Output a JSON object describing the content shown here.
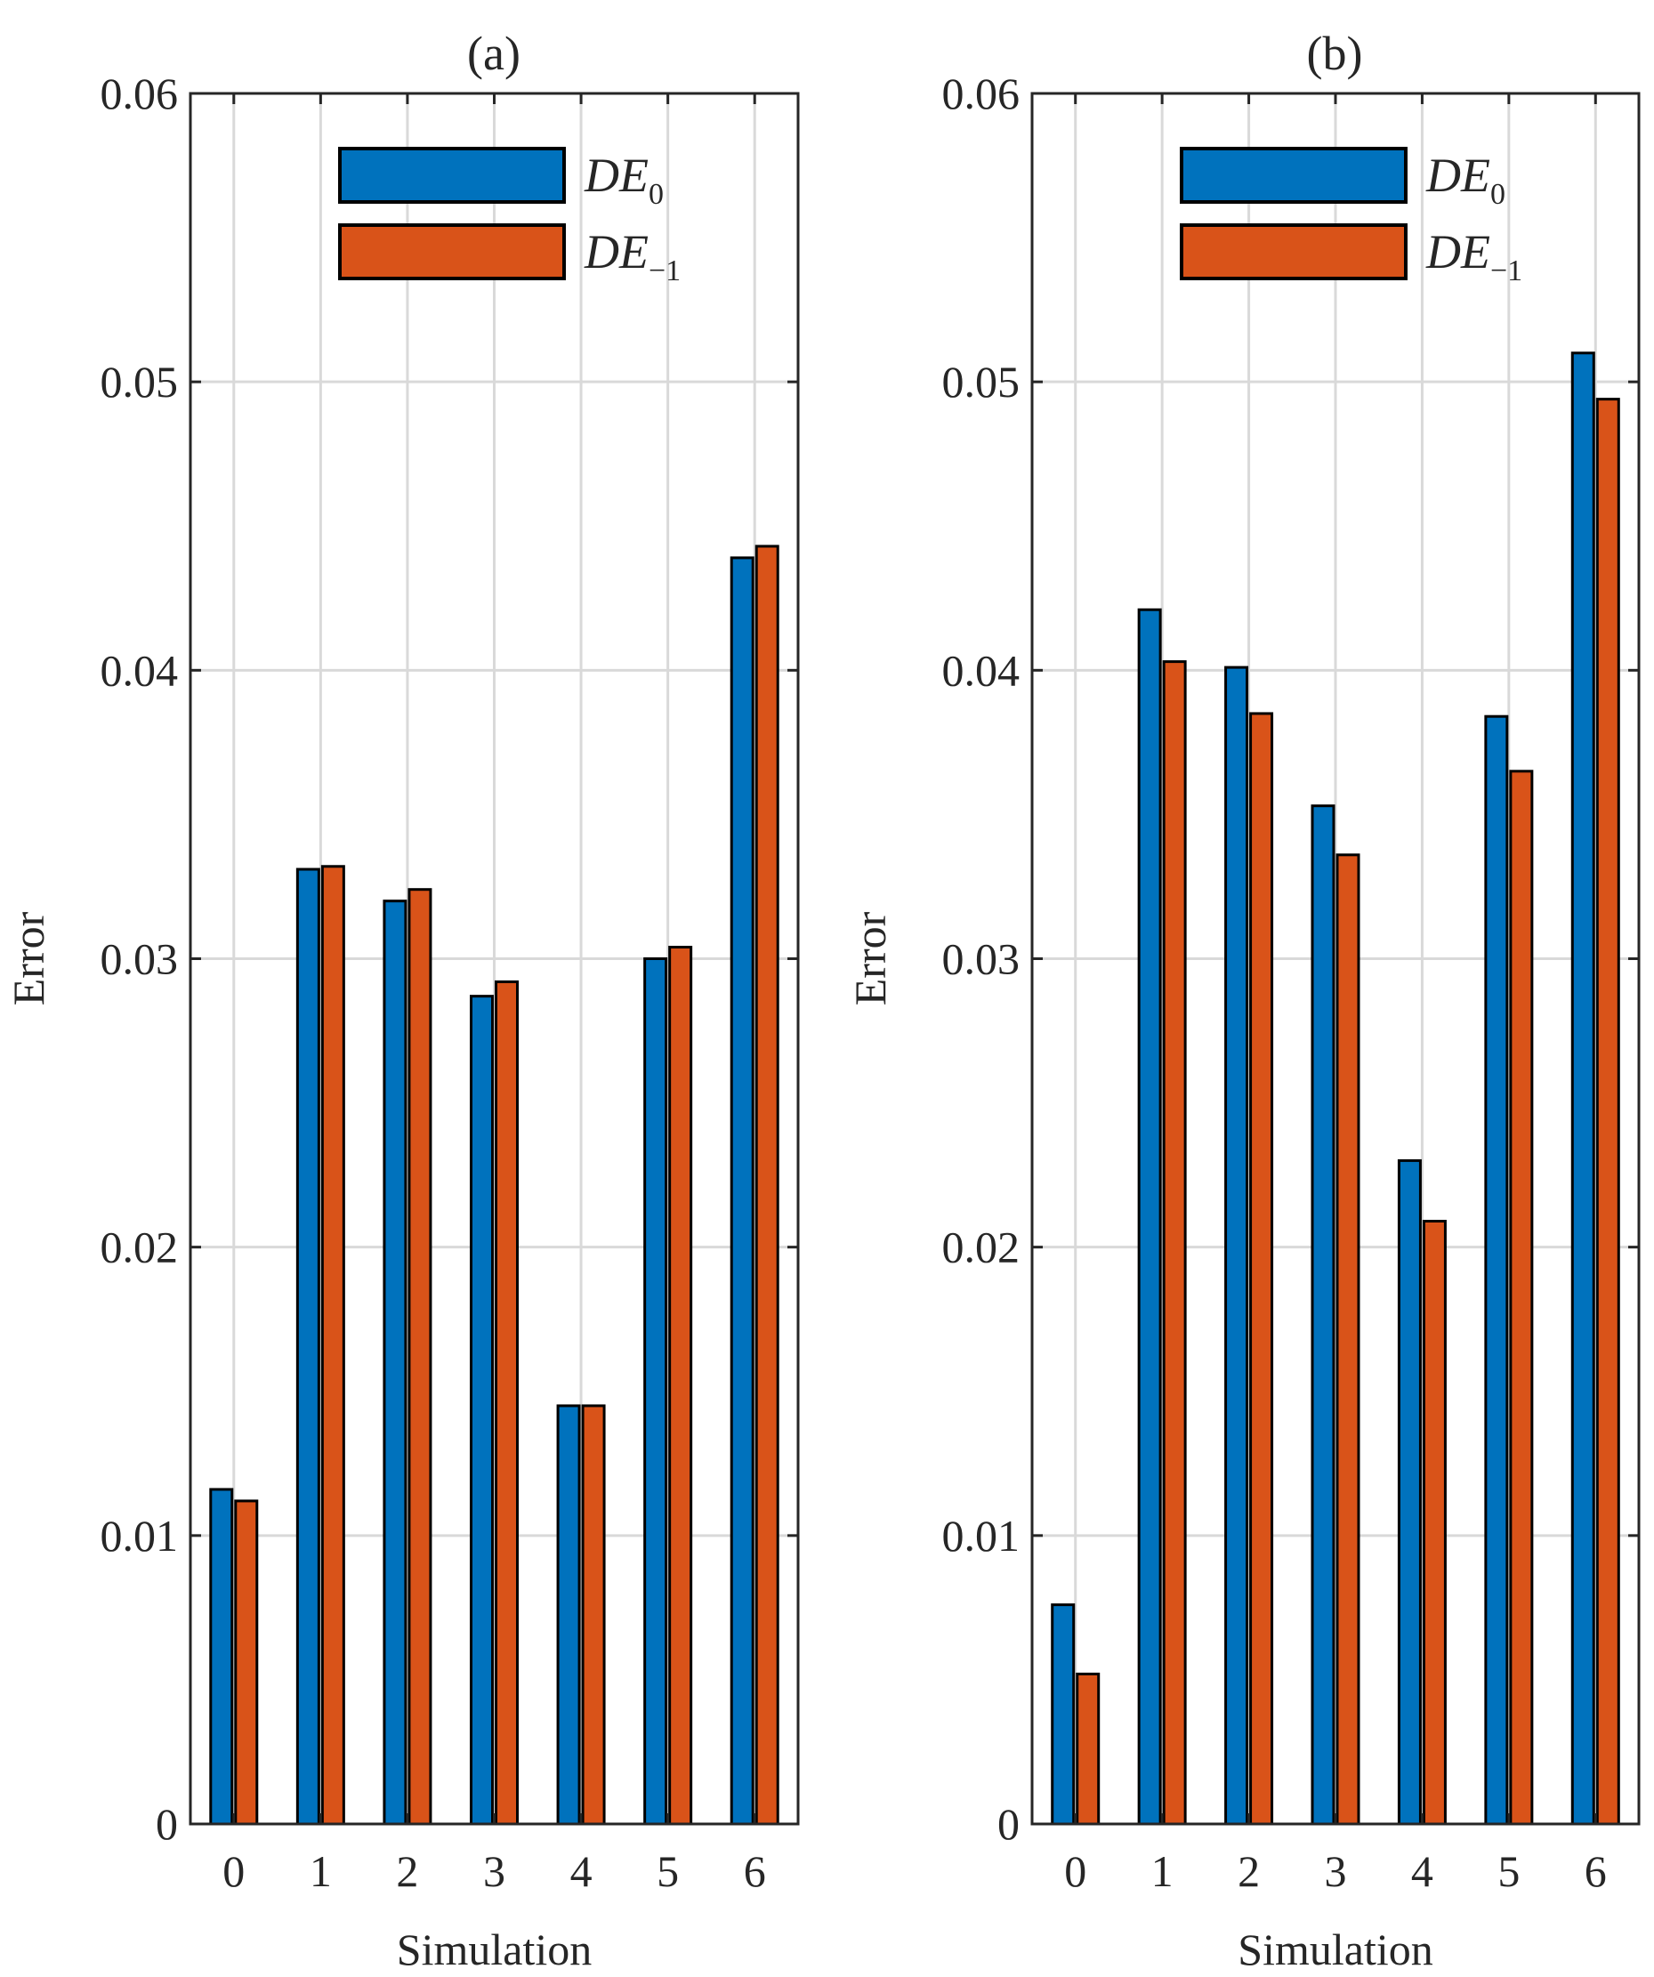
{
  "colors": {
    "DE_0": "#0072BD",
    "DE_-1": "#D95319",
    "grid": "#d9d9d9",
    "axis": "#262626"
  },
  "chart_data": [
    {
      "type": "bar",
      "title": "(a)",
      "xlabel": "Simulation",
      "ylabel": "Error",
      "categories": [
        "0",
        "1",
        "2",
        "3",
        "4",
        "5",
        "6"
      ],
      "ylim": [
        0,
        0.06
      ],
      "yticks": [
        "0",
        "0.01",
        "0.02",
        "0.03",
        "0.04",
        "0.05",
        "0.06"
      ],
      "grid": true,
      "legend_position": "top-right",
      "series": [
        {
          "name": "DE_0",
          "legend_base": "DE",
          "legend_sub": "0",
          "values": [
            0.0116,
            0.0331,
            0.032,
            0.0287,
            0.0145,
            0.03,
            0.0439
          ]
        },
        {
          "name": "DE_-1",
          "legend_base": "DE",
          "legend_sub": "−1",
          "values": [
            0.0112,
            0.0332,
            0.0324,
            0.0292,
            0.0145,
            0.0304,
            0.0443
          ]
        }
      ]
    },
    {
      "type": "bar",
      "title": "(b)",
      "xlabel": "Simulation",
      "ylabel": "Error",
      "categories": [
        "0",
        "1",
        "2",
        "3",
        "4",
        "5",
        "6"
      ],
      "ylim": [
        0,
        0.06
      ],
      "yticks": [
        "0",
        "0.01",
        "0.02",
        "0.03",
        "0.04",
        "0.05",
        "0.06"
      ],
      "grid": true,
      "legend_position": "top-right",
      "series": [
        {
          "name": "DE_0",
          "legend_base": "DE",
          "legend_sub": "0",
          "values": [
            0.0076,
            0.0421,
            0.0401,
            0.0353,
            0.023,
            0.0384,
            0.051
          ]
        },
        {
          "name": "DE_-1",
          "legend_base": "DE",
          "legend_sub": "−1",
          "values": [
            0.0052,
            0.0403,
            0.0385,
            0.0336,
            0.0209,
            0.0365,
            0.0494
          ]
        }
      ]
    }
  ]
}
